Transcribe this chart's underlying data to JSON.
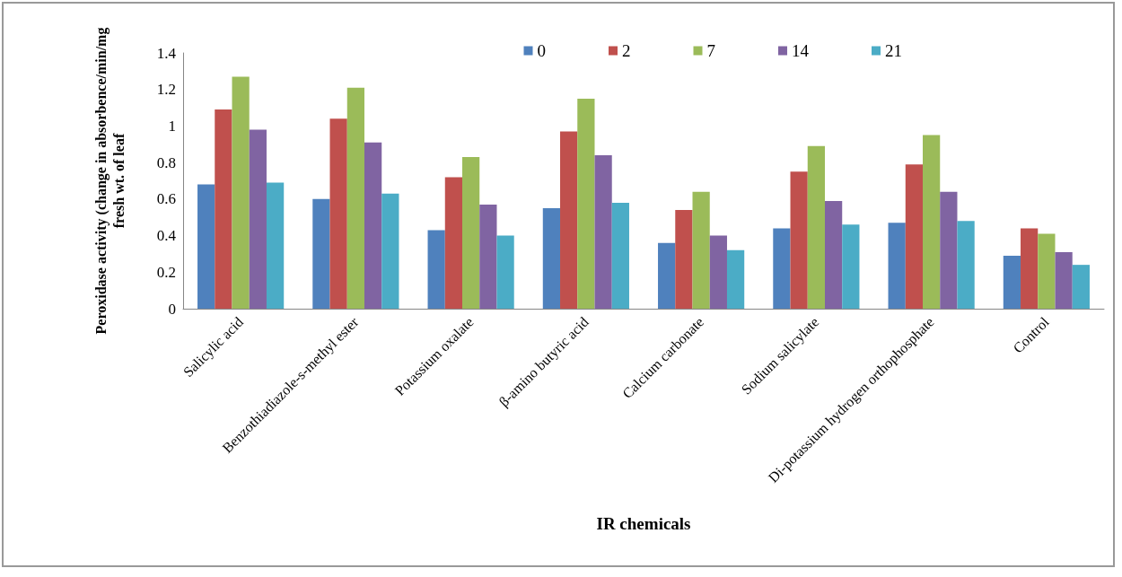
{
  "chart_data": {
    "type": "bar",
    "xlabel": "IR chemicals",
    "ylabel": "Peroxidase activity (change in absorbence/min/mg\nfresh wt. of leaf",
    "categories": [
      "Salicylic acid",
      "Benzothiadiazole-s-methyl ester",
      "Potassium oxalate",
      "β-amino butyric acid",
      "Calcium carbonate",
      "Sodium salicylate",
      "Di-potassium hydrogen orthophosphate",
      "Control"
    ],
    "series": [
      {
        "name": "0",
        "color": "#4f81bd",
        "values": [
          0.68,
          0.6,
          0.43,
          0.55,
          0.36,
          0.44,
          0.47,
          0.29
        ]
      },
      {
        "name": "2",
        "color": "#c0504d",
        "values": [
          1.09,
          1.04,
          0.72,
          0.97,
          0.54,
          0.75,
          0.79,
          0.44
        ]
      },
      {
        "name": "7",
        "color": "#9bbb59",
        "values": [
          1.27,
          1.21,
          0.83,
          1.15,
          0.64,
          0.89,
          0.95,
          0.41
        ]
      },
      {
        "name": "14",
        "color": "#8064a2",
        "values": [
          0.98,
          0.91,
          0.57,
          0.84,
          0.4,
          0.59,
          0.64,
          0.31
        ]
      },
      {
        "name": "21",
        "color": "#4bacc6",
        "values": [
          0.69,
          0.63,
          0.4,
          0.58,
          0.32,
          0.46,
          0.48,
          0.24
        ]
      }
    ],
    "ylim": [
      0,
      1.4
    ],
    "yticks": [
      0,
      0.2,
      0.4,
      0.6,
      0.8,
      1,
      1.2,
      1.4
    ],
    "grid": false,
    "legend": "top right"
  }
}
